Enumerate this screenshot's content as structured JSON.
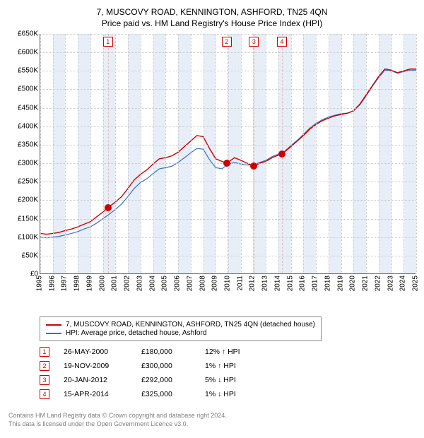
{
  "title1": "7, MUSCOVY ROAD, KENNINGTON, ASHFORD, TN25 4QN",
  "title2": "Price paid vs. HM Land Registry's House Price Index (HPI)",
  "chart": {
    "type": "line",
    "x_start_year": 1995,
    "x_end_year": 2025,
    "ylim": [
      0,
      650000
    ],
    "ytick_step": 50000,
    "y_tick_labels": [
      "£0",
      "£50K",
      "£100K",
      "£150K",
      "£200K",
      "£250K",
      "£300K",
      "£350K",
      "£400K",
      "£450K",
      "£500K",
      "£550K",
      "£600K",
      "£650K"
    ],
    "x_tick_labels": [
      "1995",
      "1996",
      "1997",
      "1998",
      "1999",
      "2000",
      "2001",
      "2002",
      "2003",
      "2004",
      "2005",
      "2006",
      "2007",
      "2008",
      "2009",
      "2010",
      "2011",
      "2012",
      "2013",
      "2014",
      "2015",
      "2016",
      "2017",
      "2018",
      "2019",
      "2020",
      "2021",
      "2022",
      "2023",
      "2024",
      "2025"
    ],
    "band_bg_color": "#e8eef7",
    "grid_color": "#c8c8c8",
    "background_color": "#ffffff",
    "series_red": {
      "label": "7, MUSCOVY ROAD, KENNINGTON, ASHFORD, TN25 4QN (detached house)",
      "color": "#d00000",
      "line_width": 1.4,
      "data": [
        [
          1995.0,
          110000
        ],
        [
          1995.5,
          108000
        ],
        [
          1996.0,
          110000
        ],
        [
          1996.5,
          113000
        ],
        [
          1997.0,
          118000
        ],
        [
          1997.5,
          122000
        ],
        [
          1998.0,
          128000
        ],
        [
          1998.5,
          135000
        ],
        [
          1999.0,
          142000
        ],
        [
          1999.5,
          155000
        ],
        [
          2000.0,
          168000
        ],
        [
          2000.4,
          180000
        ],
        [
          2001.0,
          195000
        ],
        [
          2001.5,
          210000
        ],
        [
          2002.0,
          232000
        ],
        [
          2002.5,
          255000
        ],
        [
          2003.0,
          270000
        ],
        [
          2003.5,
          282000
        ],
        [
          2004.0,
          298000
        ],
        [
          2004.5,
          312000
        ],
        [
          2005.0,
          315000
        ],
        [
          2005.5,
          320000
        ],
        [
          2006.0,
          330000
        ],
        [
          2006.5,
          345000
        ],
        [
          2007.0,
          360000
        ],
        [
          2007.5,
          375000
        ],
        [
          2008.0,
          372000
        ],
        [
          2008.5,
          340000
        ],
        [
          2009.0,
          312000
        ],
        [
          2009.5,
          305000
        ],
        [
          2009.88,
          300000
        ],
        [
          2010.5,
          315000
        ],
        [
          2011.0,
          308000
        ],
        [
          2011.5,
          300000
        ],
        [
          2012.05,
          292000
        ],
        [
          2012.5,
          300000
        ],
        [
          2013.0,
          305000
        ],
        [
          2013.5,
          315000
        ],
        [
          2014.0,
          322000
        ],
        [
          2014.29,
          325000
        ],
        [
          2015.0,
          345000
        ],
        [
          2015.5,
          360000
        ],
        [
          2016.0,
          375000
        ],
        [
          2016.5,
          392000
        ],
        [
          2017.0,
          405000
        ],
        [
          2017.5,
          415000
        ],
        [
          2018.0,
          422000
        ],
        [
          2018.5,
          428000
        ],
        [
          2019.0,
          432000
        ],
        [
          2019.5,
          435000
        ],
        [
          2020.0,
          442000
        ],
        [
          2020.5,
          460000
        ],
        [
          2021.0,
          485000
        ],
        [
          2021.5,
          510000
        ],
        [
          2022.0,
          535000
        ],
        [
          2022.5,
          555000
        ],
        [
          2023.0,
          552000
        ],
        [
          2023.5,
          545000
        ],
        [
          2024.0,
          550000
        ],
        [
          2024.5,
          555000
        ],
        [
          2025.0,
          555000
        ]
      ]
    },
    "series_blue": {
      "label": "HPI: Average price, detached house, Ashford",
      "color": "#3a6fc4",
      "line_width": 1.2,
      "data": [
        [
          1995.0,
          100000
        ],
        [
          1995.5,
          98000
        ],
        [
          1996.0,
          100000
        ],
        [
          1996.5,
          102000
        ],
        [
          1997.0,
          106000
        ],
        [
          1997.5,
          110000
        ],
        [
          1998.0,
          115000
        ],
        [
          1998.5,
          122000
        ],
        [
          1999.0,
          128000
        ],
        [
          1999.5,
          138000
        ],
        [
          2000.0,
          150000
        ],
        [
          2000.5,
          162000
        ],
        [
          2001.0,
          175000
        ],
        [
          2001.5,
          190000
        ],
        [
          2002.0,
          210000
        ],
        [
          2002.5,
          232000
        ],
        [
          2003.0,
          248000
        ],
        [
          2003.5,
          258000
        ],
        [
          2004.0,
          272000
        ],
        [
          2004.5,
          285000
        ],
        [
          2005.0,
          288000
        ],
        [
          2005.5,
          292000
        ],
        [
          2006.0,
          302000
        ],
        [
          2006.5,
          315000
        ],
        [
          2007.0,
          328000
        ],
        [
          2007.5,
          340000
        ],
        [
          2008.0,
          338000
        ],
        [
          2008.5,
          310000
        ],
        [
          2009.0,
          288000
        ],
        [
          2009.5,
          285000
        ],
        [
          2010.0,
          298000
        ],
        [
          2010.5,
          302000
        ],
        [
          2011.0,
          298000
        ],
        [
          2011.5,
          295000
        ],
        [
          2012.0,
          296000
        ],
        [
          2012.5,
          302000
        ],
        [
          2013.0,
          308000
        ],
        [
          2013.5,
          318000
        ],
        [
          2014.0,
          325000
        ],
        [
          2014.5,
          332000
        ],
        [
          2015.0,
          348000
        ],
        [
          2015.5,
          362000
        ],
        [
          2016.0,
          378000
        ],
        [
          2016.5,
          395000
        ],
        [
          2017.0,
          408000
        ],
        [
          2017.5,
          418000
        ],
        [
          2018.0,
          425000
        ],
        [
          2018.5,
          430000
        ],
        [
          2019.0,
          434000
        ],
        [
          2019.5,
          436000
        ],
        [
          2020.0,
          442000
        ],
        [
          2020.5,
          458000
        ],
        [
          2021.0,
          482000
        ],
        [
          2021.5,
          508000
        ],
        [
          2022.0,
          532000
        ],
        [
          2022.5,
          552000
        ],
        [
          2023.0,
          550000
        ],
        [
          2023.5,
          544000
        ],
        [
          2024.0,
          548000
        ],
        [
          2024.5,
          552000
        ],
        [
          2025.0,
          552000
        ]
      ]
    },
    "sale_markers": [
      {
        "n": "1",
        "year": 2000.4,
        "price": 180000
      },
      {
        "n": "2",
        "year": 2009.88,
        "price": 300000
      },
      {
        "n": "3",
        "year": 2012.05,
        "price": 292000
      },
      {
        "n": "4",
        "year": 2014.29,
        "price": 325000
      }
    ]
  },
  "legend": [
    {
      "color": "#d00000",
      "label": "7, MUSCOVY ROAD, KENNINGTON, ASHFORD, TN25 4QN (detached house)"
    },
    {
      "color": "#3a6fc4",
      "label": "HPI: Average price, detached house, Ashford"
    }
  ],
  "transactions": [
    {
      "n": "1",
      "date": "26-MAY-2000",
      "price": "£180,000",
      "diff": "12% ↑ HPI"
    },
    {
      "n": "2",
      "date": "19-NOV-2009",
      "price": "£300,000",
      "diff": "1% ↑ HPI"
    },
    {
      "n": "3",
      "date": "20-JAN-2012",
      "price": "£292,000",
      "diff": "5% ↓ HPI"
    },
    {
      "n": "4",
      "date": "15-APR-2014",
      "price": "£325,000",
      "diff": "1% ↓ HPI"
    }
  ],
  "footer1": "Contains HM Land Registry data © Crown copyright and database right 2024.",
  "footer2": "This data is licensed under the Open Government Licence v3.0."
}
